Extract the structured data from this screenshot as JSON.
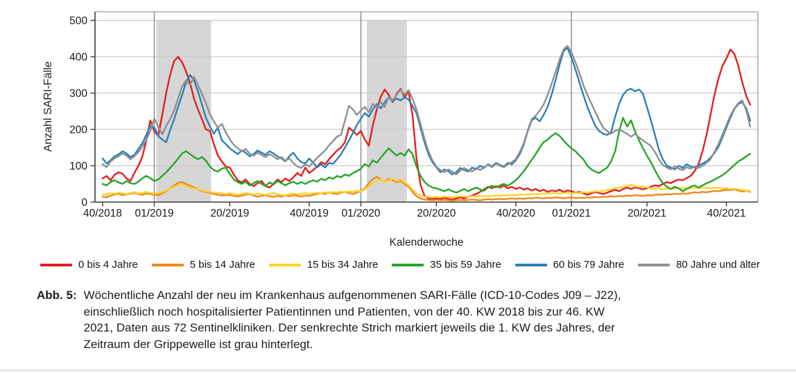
{
  "caption": {
    "label": "Abb. 5:",
    "lines": [
      "Wöchentliche Anzahl der neu im Krankenhaus aufgenommenen SARI-Fälle (ICD-10-Codes J09 – J22),",
      "einschließlich noch hospitalisierter Patientinnen und Patienten, von der 40. KW 2018 bis zur 46. KW",
      "2021, Daten aus 72 Sentinelkliniken. Der senkrechte Strich markiert jeweils die 1. KW des Jahres, der",
      "Zeitraum der Grippewelle ist grau hinterlegt."
    ]
  },
  "styles": {
    "band_color": "#d6d6d6",
    "grid_color": "#c9c9c9",
    "axis_color": "#3c3c3c",
    "box_color": "#9a9a9a",
    "year_line_color": "#8c8c8c",
    "tick_text_color": "#1a1a1a"
  },
  "chart_data": {
    "type": "line",
    "title": "",
    "xlabel": "Kalenderwoche",
    "ylabel": "Anzahl SARI-Fälle",
    "ylim": [
      0,
      500
    ],
    "yticks": [
      0,
      100,
      200,
      300,
      400,
      500
    ],
    "grid": "horizontal",
    "legend_position": "bottom",
    "x_start_week": "40/2018",
    "x_end_week": "46/2021",
    "n_weeks": 164,
    "xticks": [
      {
        "label": "40/2018",
        "week": 0
      },
      {
        "label": "01/2019",
        "week": 13
      },
      {
        "label": "20/2019",
        "week": 32
      },
      {
        "label": "40/2019",
        "week": 52
      },
      {
        "label": "01/2020",
        "week": 65
      },
      {
        "label": "20/2020",
        "week": 84
      },
      {
        "label": "40/2020",
        "week": 104
      },
      {
        "label": "01/2021",
        "week": 118
      },
      {
        "label": "20/2021",
        "week": 137
      },
      {
        "label": "40/2021",
        "week": 157
      }
    ],
    "year_lines_weeks": [
      13,
      65,
      118
    ],
    "flu_wave_bands_weeks": [
      [
        13.5,
        27.3
      ],
      [
        66.5,
        76.6
      ]
    ],
    "series": [
      {
        "name": "0 bis 4 Jahre",
        "color": "#e31f1d",
        "values": [
          65,
          72,
          60,
          75,
          82,
          78,
          65,
          58,
          80,
          100,
          125,
          170,
          225,
          195,
          182,
          240,
          300,
          350,
          388,
          400,
          385,
          360,
          328,
          285,
          255,
          228,
          200,
          196,
          160,
          128,
          112,
          98,
          95,
          76,
          60,
          54,
          62,
          50,
          44,
          52,
          58,
          44,
          40,
          50,
          62,
          55,
          65,
          58,
          68,
          80,
          72,
          95,
          80,
          88,
          98,
          110,
          104,
          118,
          130,
          142,
          150,
          165,
          205,
          195,
          185,
          196,
          172,
          155,
          210,
          255,
          290,
          310,
          295,
          275,
          298,
          312,
          288,
          305,
          240,
          120,
          48,
          18,
          10,
          8,
          10,
          8,
          12,
          9,
          7,
          10,
          13,
          10,
          14,
          18,
          22,
          28,
          35,
          42,
          38,
          44,
          40,
          45,
          38,
          42,
          36,
          40,
          34,
          38,
          32,
          36,
          30,
          34,
          28,
          32,
          30,
          34,
          28,
          32,
          30,
          26,
          28,
          24,
          20,
          24,
          28,
          25,
          22,
          26,
          30,
          34,
          30,
          36,
          40,
          36,
          40,
          38,
          35,
          38,
          42,
          46,
          44,
          50,
          55,
          52,
          58,
          62,
          60,
          66,
          72,
          85,
          105,
          140,
          185,
          240,
          295,
          340,
          375,
          395,
          420,
          408,
          375,
          330,
          292,
          268
        ]
      },
      {
        "name": "5 bis 14 Jahre",
        "color": "#f0861e",
        "values": [
          15,
          13,
          18,
          21,
          23,
          19,
          21,
          23,
          25,
          22,
          20,
          24,
          22,
          20,
          19,
          24,
          30,
          38,
          46,
          53,
          55,
          50,
          45,
          40,
          35,
          30,
          28,
          25,
          22,
          20,
          18,
          19,
          20,
          17,
          15,
          18,
          20,
          22,
          18,
          15,
          17,
          19,
          16,
          14,
          17,
          15,
          18,
          16,
          19,
          17,
          15,
          18,
          17,
          20,
          22,
          25,
          22,
          27,
          24,
          22,
          26,
          28,
          25,
          22,
          26,
          30,
          38,
          52,
          63,
          70,
          62,
          56,
          64,
          60,
          55,
          58,
          50,
          42,
          28,
          16,
          10,
          7,
          6,
          5,
          6,
          5,
          6,
          5,
          4,
          5,
          6,
          5,
          6,
          7,
          6,
          5,
          7,
          8,
          7,
          8,
          9,
          8,
          9,
          10,
          9,
          10,
          9,
          11,
          10,
          12,
          11,
          10,
          12,
          11,
          13,
          12,
          10,
          12,
          13,
          11,
          12,
          11,
          13,
          12,
          14,
          13,
          15,
          14,
          16,
          15,
          17,
          16,
          18,
          17,
          19,
          18,
          17,
          19,
          18,
          20,
          21,
          20,
          22,
          21,
          23,
          22,
          24,
          23,
          25,
          27,
          26,
          28,
          27,
          29,
          31,
          30,
          32,
          34,
          33,
          35,
          32,
          29,
          31,
          28
        ]
      },
      {
        "name": "15 bis 34 Jahre",
        "color": "#fbd32b",
        "values": [
          22,
          20,
          25,
          23,
          26,
          24,
          22,
          25,
          27,
          24,
          26,
          28,
          25,
          23,
          25,
          28,
          32,
          37,
          42,
          46,
          48,
          44,
          40,
          38,
          35,
          32,
          30,
          28,
          26,
          25,
          24,
          22,
          25,
          23,
          20,
          22,
          25,
          23,
          21,
          24,
          22,
          20,
          23,
          25,
          22,
          20,
          18,
          22,
          24,
          21,
          23,
          25,
          22,
          24,
          26,
          24,
          27,
          25,
          28,
          26,
          29,
          27,
          30,
          28,
          31,
          29,
          35,
          44,
          52,
          58,
          62,
          55,
          60,
          64,
          58,
          62,
          54,
          46,
          34,
          24,
          18,
          15,
          14,
          13,
          14,
          13,
          15,
          14,
          13,
          15,
          16,
          15,
          14,
          16,
          15,
          17,
          16,
          15,
          17,
          18,
          17,
          19,
          18,
          20,
          19,
          21,
          20,
          22,
          21,
          23,
          22,
          24,
          23,
          25,
          24,
          23,
          25,
          26,
          24,
          26,
          25,
          27,
          26,
          28,
          30,
          29,
          31,
          33,
          35,
          38,
          40,
          42,
          45,
          48,
          44,
          41,
          43,
          40,
          38,
          36,
          38,
          35,
          37,
          36,
          38,
          37,
          39,
          38,
          37,
          39,
          38,
          40,
          39,
          38,
          40,
          39,
          37,
          38,
          36,
          37,
          35,
          33,
          32,
          30
        ]
      },
      {
        "name": "35 bis 59 Jahre",
        "color": "#28a428",
        "values": [
          50,
          46,
          55,
          60,
          54,
          50,
          58,
          52,
          50,
          56,
          66,
          72,
          66,
          58,
          62,
          72,
          82,
          94,
          106,
          120,
          134,
          140,
          132,
          124,
          118,
          124,
          114,
          98,
          88,
          84,
          92,
          95,
          78,
          62,
          55,
          50,
          56,
          46,
          52,
          58,
          50,
          44,
          54,
          48,
          58,
          52,
          46,
          52,
          56,
          50,
          55,
          50,
          56,
          60,
          56,
          64,
          60,
          68,
          64,
          72,
          68,
          76,
          72,
          80,
          85,
          92,
          105,
          98,
          115,
          108,
          122,
          135,
          148,
          138,
          128,
          135,
          128,
          145,
          132,
          98,
          72,
          56,
          46,
          40,
          38,
          34,
          30,
          35,
          30,
          26,
          31,
          36,
          30,
          35,
          40,
          35,
          31,
          40,
          45,
          40,
          46,
          50,
          45,
          52,
          60,
          72,
          85,
          100,
          116,
          132,
          150,
          165,
          172,
          182,
          190,
          182,
          170,
          158,
          148,
          140,
          128,
          118,
          100,
          90,
          84,
          80,
          88,
          95,
          112,
          140,
          195,
          232,
          208,
          225,
          195,
          170,
          148,
          128,
          110,
          88,
          68,
          52,
          42,
          36,
          42,
          38,
          30,
          36,
          42,
          46,
          40,
          46,
          52,
          56,
          62,
          68,
          74,
          82,
          92,
          102,
          112,
          118,
          126,
          133
        ]
      },
      {
        "name": "60 bis 79 Jahre",
        "color": "#2c80b9",
        "values": [
          120,
          106,
          115,
          126,
          131,
          140,
          134,
          124,
          130,
          146,
          162,
          185,
          210,
          205,
          182,
          172,
          165,
          198,
          228,
          262,
          295,
          330,
          350,
          335,
          305,
          268,
          232,
          208,
          188,
          205,
          170,
          160,
          148,
          140,
          132,
          142,
          136,
          126,
          132,
          142,
          136,
          130,
          140,
          134,
          126,
          120,
          112,
          126,
          136,
          120,
          110,
          106,
          120,
          108,
          96,
          104,
          95,
          108,
          105,
          118,
          132,
          150,
          170,
          190,
          212,
          230,
          245,
          235,
          255,
          270,
          258,
          275,
          288,
          278,
          285,
          280,
          288,
          282,
          265,
          245,
          205,
          165,
          132,
          110,
          96,
          82,
          90,
          85,
          76,
          82,
          94,
          88,
          84,
          95,
          90,
          100,
          94,
          104,
          98,
          108,
          102,
          98,
          108,
          104,
          115,
          132,
          158,
          195,
          225,
          232,
          222,
          240,
          262,
          295,
          335,
          378,
          415,
          425,
          398,
          365,
          330,
          295,
          262,
          235,
          210,
          195,
          188,
          185,
          192,
          235,
          270,
          295,
          308,
          312,
          305,
          310,
          298,
          262,
          225,
          185,
          145,
          118,
          100,
          95,
          90,
          100,
          94,
          104,
          98,
          95,
          100,
          106,
          112,
          122,
          135,
          152,
          178,
          205,
          232,
          256,
          270,
          275,
          258,
          224
        ]
      },
      {
        "name": "80 Jahre und älter",
        "color": "#8f8f8f",
        "values": [
          105,
          96,
          112,
          120,
          126,
          134,
          128,
          118,
          126,
          138,
          152,
          172,
          196,
          230,
          208,
          186,
          210,
          228,
          252,
          285,
          318,
          335,
          322,
          345,
          322,
          298,
          272,
          242,
          222,
          205,
          215,
          192,
          172,
          158,
          148,
          140,
          146,
          134,
          128,
          136,
          130,
          124,
          132,
          126,
          118,
          124,
          114,
          120,
          108,
          98,
          94,
          104,
          98,
          110,
          122,
          132,
          142,
          156,
          168,
          180,
          185,
          225,
          265,
          255,
          240,
          252,
          262,
          248,
          270,
          260,
          275,
          262,
          290,
          280,
          295,
          310,
          295,
          308,
          285,
          255,
          215,
          175,
          140,
          115,
          98,
          88,
          82,
          90,
          84,
          76,
          86,
          94,
          88,
          84,
          94,
          88,
          96,
          102,
          96,
          106,
          100,
          96,
          104,
          110,
          118,
          138,
          162,
          198,
          228,
          238,
          252,
          268,
          295,
          325,
          358,
          392,
          420,
          430,
          412,
          385,
          355,
          322,
          295,
          272,
          248,
          225,
          205,
          195,
          188,
          196,
          200,
          194,
          188,
          180,
          188,
          178,
          170,
          162,
          155,
          138,
          118,
          102,
          95,
          90,
          98,
          92,
          88,
          96,
          92,
          98,
          94,
          100,
          108,
          118,
          138,
          160,
          185,
          212,
          238,
          258,
          272,
          280,
          252,
          208
        ]
      }
    ]
  }
}
